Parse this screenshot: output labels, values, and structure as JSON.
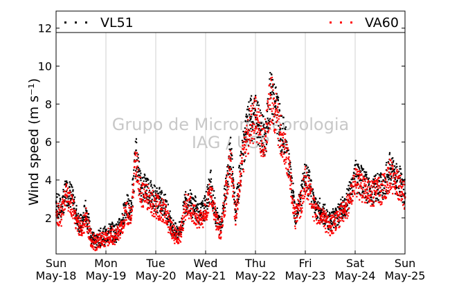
{
  "chart_data": {
    "type": "scatter",
    "ylabel": "Wind speed (m s⁻¹)",
    "xlabel": "",
    "ylim": [
      0.1,
      12.9
    ],
    "yticks": [
      2,
      4,
      6,
      8,
      10,
      12
    ],
    "xlim": [
      0,
      7
    ],
    "x_unit": "days since May-18 00:00",
    "xticks": [
      {
        "day": "Sun",
        "date": "May-18"
      },
      {
        "day": "Mon",
        "date": "May-19"
      },
      {
        "day": "Tue",
        "date": "May-20"
      },
      {
        "day": "Wed",
        "date": "May-21"
      },
      {
        "day": "Thu",
        "date": "May-22"
      },
      {
        "day": "Fri",
        "date": "May-23"
      },
      {
        "day": "Sat",
        "date": "May-24"
      },
      {
        "day": "Sun",
        "date": "May-25"
      }
    ],
    "grid": "vertical",
    "legend_position": "top",
    "watermark": [
      "Grupo de Micrometeorologia",
      "IAG / USP"
    ],
    "series": [
      {
        "name": "VL51",
        "color": "#000000",
        "marker": "square-dot",
        "x": [
          0.0,
          0.1,
          0.2,
          0.3,
          0.4,
          0.5,
          0.6,
          0.7,
          0.8,
          0.9,
          1.0,
          1.1,
          1.2,
          1.3,
          1.4,
          1.5,
          1.6,
          1.7,
          1.8,
          1.9,
          2.0,
          2.1,
          2.2,
          2.3,
          2.4,
          2.5,
          2.6,
          2.7,
          2.8,
          2.9,
          3.0,
          3.1,
          3.2,
          3.3,
          3.4,
          3.5,
          3.6,
          3.7,
          3.8,
          3.9,
          4.0,
          4.1,
          4.2,
          4.3,
          4.4,
          4.5,
          4.6,
          4.7,
          4.8,
          4.9,
          5.0,
          5.1,
          5.2,
          5.3,
          5.4,
          5.5,
          5.6,
          5.7,
          5.8,
          5.9,
          6.0,
          6.1,
          6.2,
          6.3,
          6.4,
          6.5,
          6.6,
          6.7,
          6.8,
          6.9,
          7.0
        ],
        "y": [
          2.8,
          2.4,
          3.4,
          3.2,
          2.2,
          1.6,
          2.4,
          1.0,
          0.8,
          1.0,
          1.1,
          1.3,
          1.2,
          1.6,
          2.7,
          2.3,
          5.4,
          3.6,
          3.7,
          3.3,
          3.0,
          2.9,
          2.6,
          1.7,
          1.2,
          1.4,
          3.0,
          2.8,
          2.5,
          2.2,
          2.6,
          3.9,
          2.2,
          1.5,
          3.5,
          5.6,
          2.3,
          4.6,
          6.4,
          7.2,
          7.3,
          6.6,
          6.1,
          8.6,
          7.9,
          6.7,
          6.0,
          4.2,
          2.2,
          3.0,
          4.2,
          3.6,
          2.5,
          2.4,
          2.1,
          1.9,
          2.0,
          2.4,
          2.6,
          3.3,
          4.2,
          4.0,
          3.7,
          3.4,
          3.6,
          3.6,
          3.9,
          4.6,
          4.1,
          3.9,
          3.3
        ]
      },
      {
        "name": "VA60",
        "color": "#ff0000",
        "marker": "square-dot",
        "x": [
          0.0,
          0.1,
          0.2,
          0.3,
          0.4,
          0.5,
          0.6,
          0.7,
          0.8,
          0.9,
          1.0,
          1.1,
          1.2,
          1.3,
          1.4,
          1.5,
          1.6,
          1.7,
          1.8,
          1.9,
          2.0,
          2.1,
          2.2,
          2.3,
          2.4,
          2.5,
          2.6,
          2.7,
          2.8,
          2.9,
          3.0,
          3.1,
          3.2,
          3.3,
          3.4,
          3.5,
          3.6,
          3.7,
          3.8,
          3.9,
          4.0,
          4.1,
          4.2,
          4.3,
          4.4,
          4.5,
          4.6,
          4.7,
          4.8,
          4.9,
          5.0,
          5.1,
          5.2,
          5.3,
          5.4,
          5.5,
          5.6,
          5.7,
          5.8,
          5.9,
          6.0,
          6.1,
          6.2,
          6.3,
          6.4,
          6.5,
          6.6,
          6.7,
          6.8,
          6.9,
          7.0
        ],
        "y": [
          2.3,
          2.1,
          3.2,
          2.8,
          1.9,
          1.4,
          2.0,
          0.8,
          0.7,
          0.9,
          0.9,
          1.1,
          1.0,
          1.3,
          2.4,
          2.0,
          5.0,
          3.3,
          3.2,
          2.9,
          2.6,
          2.5,
          2.2,
          1.4,
          1.0,
          1.2,
          2.6,
          2.5,
          2.1,
          1.9,
          2.2,
          3.5,
          1.9,
          1.2,
          3.1,
          5.2,
          2.0,
          4.3,
          6.0,
          6.9,
          7.2,
          6.4,
          6.3,
          8.3,
          7.6,
          6.4,
          5.7,
          4.0,
          2.0,
          2.7,
          3.9,
          3.3,
          2.2,
          2.1,
          1.8,
          1.6,
          1.7,
          2.2,
          2.4,
          3.0,
          3.9,
          3.7,
          3.5,
          3.2,
          3.4,
          3.4,
          3.7,
          4.3,
          3.9,
          3.7,
          3.1
        ]
      }
    ]
  }
}
